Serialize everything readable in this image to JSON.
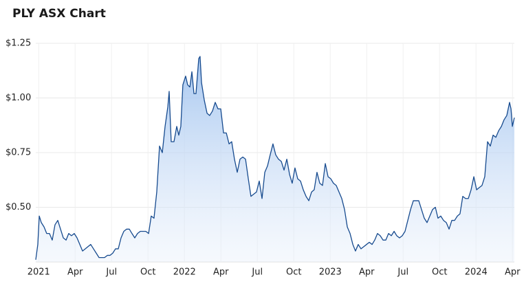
{
  "chart_data": {
    "type": "area",
    "title": "PLY ASX Chart",
    "x": [
      2020.98,
      2020.994,
      2021.004,
      2021.018,
      2021.037,
      2021.055,
      2021.074,
      2021.093,
      2021.112,
      2021.131,
      2021.15,
      2021.169,
      2021.188,
      2021.206,
      2021.225,
      2021.244,
      2021.263,
      2021.282,
      2021.301,
      2021.32,
      2021.338,
      2021.357,
      2021.376,
      2021.395,
      2021.414,
      2021.433,
      2021.452,
      2021.471,
      2021.489,
      2021.508,
      2021.527,
      2021.546,
      2021.565,
      2021.584,
      2021.603,
      2021.622,
      2021.64,
      2021.659,
      2021.678,
      2021.697,
      2021.716,
      2021.735,
      2021.754,
      2021.772,
      2021.791,
      2021.81,
      2021.829,
      2021.848,
      2021.867,
      2021.886,
      2021.895,
      2021.909,
      2021.928,
      2021.947,
      2021.961,
      2021.975,
      2021.989,
      2022.008,
      2022.022,
      2022.037,
      2022.051,
      2022.065,
      2022.079,
      2022.098,
      2022.107,
      2022.117,
      2022.136,
      2022.155,
      2022.173,
      2022.192,
      2022.211,
      2022.23,
      2022.249,
      2022.268,
      2022.287,
      2022.306,
      2022.324,
      2022.343,
      2022.362,
      2022.381,
      2022.4,
      2022.419,
      2022.438,
      2022.456,
      2022.475,
      2022.494,
      2022.513,
      2022.532,
      2022.551,
      2022.57,
      2022.588,
      2022.607,
      2022.626,
      2022.645,
      2022.664,
      2022.683,
      2022.702,
      2022.721,
      2022.739,
      2022.758,
      2022.777,
      2022.796,
      2022.815,
      2022.834,
      2022.853,
      2022.872,
      2022.89,
      2022.909,
      2022.928,
      2022.947,
      2022.966,
      2022.985,
      2023.004,
      2023.022,
      2023.041,
      2023.06,
      2023.079,
      2023.098,
      2023.117,
      2023.136,
      2023.155,
      2023.173,
      2023.192,
      2023.211,
      2023.23,
      2023.249,
      2023.268,
      2023.287,
      2023.305,
      2023.324,
      2023.343,
      2023.362,
      2023.381,
      2023.4,
      2023.419,
      2023.438,
      2023.456,
      2023.475,
      2023.494,
      2023.513,
      2023.532,
      2023.551,
      2023.57,
      2023.588,
      2023.607,
      2023.626,
      2023.645,
      2023.664,
      2023.683,
      2023.702,
      2023.721,
      2023.739,
      2023.758,
      2023.777,
      2023.796,
      2023.815,
      2023.834,
      2023.853,
      2023.872,
      2023.89,
      2023.909,
      2023.928,
      2023.947,
      2023.966,
      2023.985,
      2024.004,
      2024.022,
      2024.041,
      2024.06,
      2024.079,
      2024.098,
      2024.117,
      2024.136,
      2024.155,
      2024.174,
      2024.192,
      2024.211,
      2024.23,
      2024.24,
      2024.249,
      2024.263
    ],
    "values": [
      0.26,
      0.33,
      0.46,
      0.43,
      0.41,
      0.38,
      0.38,
      0.35,
      0.42,
      0.44,
      0.4,
      0.36,
      0.35,
      0.38,
      0.37,
      0.38,
      0.36,
      0.33,
      0.3,
      0.31,
      0.32,
      0.33,
      0.31,
      0.29,
      0.27,
      0.27,
      0.27,
      0.28,
      0.28,
      0.29,
      0.31,
      0.31,
      0.36,
      0.39,
      0.4,
      0.4,
      0.38,
      0.36,
      0.38,
      0.39,
      0.39,
      0.39,
      0.38,
      0.46,
      0.45,
      0.57,
      0.78,
      0.75,
      0.87,
      0.96,
      1.03,
      0.8,
      0.8,
      0.87,
      0.83,
      0.87,
      1.06,
      1.1,
      1.06,
      1.05,
      1.12,
      1.02,
      1.02,
      1.18,
      1.19,
      1.07,
      0.99,
      0.93,
      0.92,
      0.94,
      0.98,
      0.95,
      0.95,
      0.84,
      0.84,
      0.79,
      0.8,
      0.72,
      0.66,
      0.72,
      0.73,
      0.72,
      0.63,
      0.55,
      0.56,
      0.57,
      0.62,
      0.54,
      0.66,
      0.69,
      0.74,
      0.79,
      0.74,
      0.72,
      0.71,
      0.67,
      0.72,
      0.65,
      0.61,
      0.68,
      0.63,
      0.62,
      0.58,
      0.55,
      0.53,
      0.57,
      0.58,
      0.66,
      0.61,
      0.6,
      0.7,
      0.64,
      0.63,
      0.61,
      0.6,
      0.57,
      0.54,
      0.49,
      0.41,
      0.38,
      0.33,
      0.3,
      0.33,
      0.31,
      0.32,
      0.33,
      0.34,
      0.33,
      0.35,
      0.38,
      0.37,
      0.35,
      0.35,
      0.38,
      0.37,
      0.39,
      0.37,
      0.36,
      0.37,
      0.39,
      0.44,
      0.49,
      0.53,
      0.53,
      0.53,
      0.49,
      0.45,
      0.43,
      0.46,
      0.49,
      0.5,
      0.45,
      0.46,
      0.44,
      0.43,
      0.4,
      0.44,
      0.44,
      0.46,
      0.47,
      0.55,
      0.54,
      0.54,
      0.58,
      0.64,
      0.58,
      0.59,
      0.6,
      0.64,
      0.8,
      0.78,
      0.83,
      0.82,
      0.85,
      0.87,
      0.9,
      0.92,
      0.98,
      0.95,
      0.87,
      0.91
    ],
    "color": "#164a8e",
    "xlim": [
      2020.98,
      2024.263
    ],
    "xticks": [
      2021,
      {
        "value": 2021.25,
        "label": "Apr"
      },
      {
        "value": 2021.5,
        "label": "Jul"
      },
      {
        "value": 2021.75,
        "label": "Oct"
      },
      2022,
      {
        "value": 2022.25,
        "label": "Apr"
      },
      {
        "value": 2022.5,
        "label": "Jul"
      },
      {
        "value": 2022.75,
        "label": "Oct"
      },
      2023,
      {
        "value": 2023.25,
        "label": "Apr"
      },
      {
        "value": 2023.5,
        "label": "Jul"
      },
      {
        "value": 2023.75,
        "label": "Oct"
      },
      2024,
      {
        "value": 2024.25,
        "label": "Apr"
      }
    ],
    "ylim": [
      0.25,
      1.25
    ],
    "yticks": [
      {
        "value": 0.5,
        "label": "$0.50"
      },
      {
        "value": 0.75,
        "label": "$0.75"
      },
      {
        "value": 1.0,
        "label": "$1.00"
      },
      {
        "value": 1.25,
        "label": "$1.25"
      }
    ],
    "grid": true
  }
}
